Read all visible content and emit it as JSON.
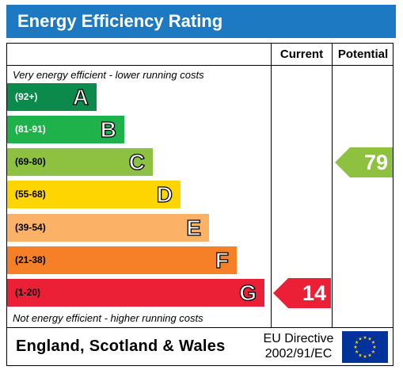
{
  "title": "Energy Efficiency Rating",
  "columns": {
    "current": "Current",
    "potential": "Potential"
  },
  "caption_top": "Very energy efficient - lower running costs",
  "caption_bottom": "Not energy efficient - higher running costs",
  "bands": [
    {
      "letter": "A",
      "range": "(92+)",
      "color": "#0c8a4b",
      "range_color": "#ffffff"
    },
    {
      "letter": "B",
      "range": "(81-91)",
      "color": "#1fb14a",
      "range_color": "#ffffff"
    },
    {
      "letter": "C",
      "range": "(69-80)",
      "color": "#8dc13f",
      "range_color": "#000000"
    },
    {
      "letter": "D",
      "range": "(55-68)",
      "color": "#ffd500",
      "range_color": "#000000"
    },
    {
      "letter": "E",
      "range": "(39-54)",
      "color": "#fbb166",
      "range_color": "#000000"
    },
    {
      "letter": "F",
      "range": "(21-38)",
      "color": "#f58028",
      "range_color": "#000000"
    },
    {
      "letter": "G",
      "range": "(1-20)",
      "color": "#eb2037",
      "range_color": "#000000"
    }
  ],
  "current": {
    "value": "14",
    "band": "G",
    "color": "#eb2037"
  },
  "potential": {
    "value": "79",
    "band": "C",
    "color": "#8dc13f"
  },
  "footer": {
    "region": "England, Scotland & Wales",
    "directive_line1": "EU Directive",
    "directive_line2": "2002/91/EC",
    "flag_icon": "eu-flag-icon"
  }
}
